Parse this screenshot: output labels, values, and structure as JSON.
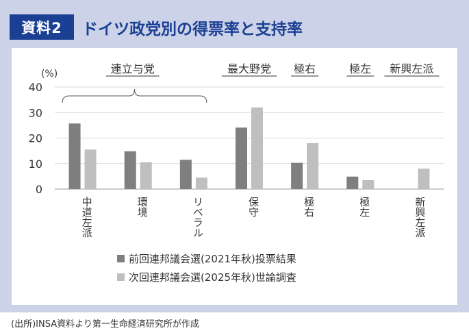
{
  "header": {
    "badge": "資料2",
    "title": "ドイツ政党別の得票率と支持率"
  },
  "source": "(出所)INSA資料より第一生命経済研究所が作成",
  "colors": {
    "frame": "#ccd3e8",
    "badge": "#1b3f93",
    "series_2021": "#7f7f7f",
    "series_2025": "#bfbfbf"
  },
  "chart_data": {
    "type": "bar",
    "ylabel": "(%)",
    "ylim": [
      0,
      40
    ],
    "yticks": [
      0,
      10,
      20,
      30,
      40
    ],
    "grid": true,
    "legend_position": "bottom",
    "categories": [
      "中道左派",
      "環境",
      "リベラル",
      "保守",
      "極右",
      "極左",
      "新興左派"
    ],
    "series": [
      {
        "name": "前回連邦議会選(2021年秋)投票結果",
        "values": [
          25.7,
          14.8,
          11.5,
          24.1,
          10.3,
          4.9,
          null
        ]
      },
      {
        "name": "次回連邦議会選(2025年秋)世論調査",
        "values": [
          15.5,
          10.5,
          4.5,
          32.0,
          18.0,
          3.5,
          8.0
        ]
      }
    ],
    "group_labels": [
      "連立与党",
      "最大野党",
      "極右",
      "極左",
      "新興左派"
    ]
  }
}
